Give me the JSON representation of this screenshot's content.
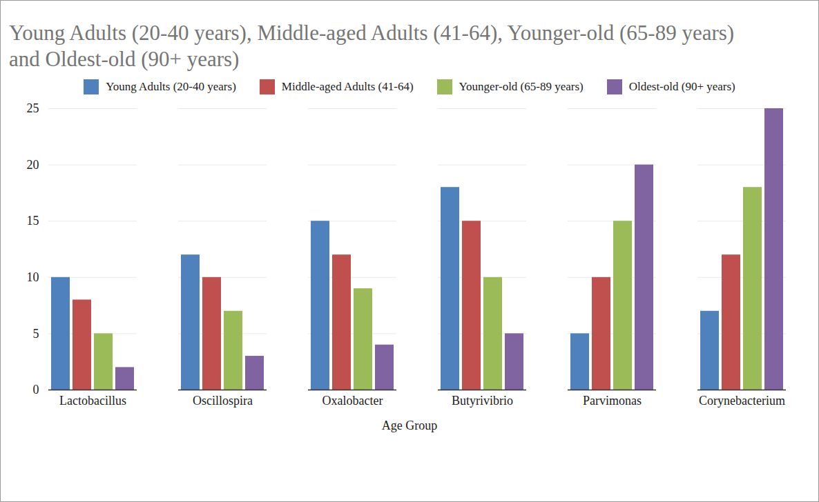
{
  "chart_data": {
    "type": "bar",
    "title": "Young Adults (20-40 years), Middle-aged Adults (41-64), Younger-old (65-89 years) and Oldest-old (90+ years)",
    "x_label": "Age Group",
    "categories": [
      "Lactobacillus",
      "Oscillospira",
      "Oxalobacter",
      "Butyrivibrio",
      "Parvimonas",
      "Corynebacterium"
    ],
    "series": [
      {
        "name": "Young Adults (20-40 years)",
        "color": "#4f81bd",
        "values": [
          10,
          12,
          15,
          18,
          5,
          7
        ]
      },
      {
        "name": "Middle-aged Adults (41-64)",
        "color": "#c0504d",
        "values": [
          8,
          10,
          12,
          15,
          10,
          12
        ]
      },
      {
        "name": "Younger-old (65-89 years)",
        "color": "#9bbb59",
        "values": [
          5,
          7,
          9,
          10,
          15,
          18
        ]
      },
      {
        "name": "Oldest-old (90+ years)",
        "color": "#8064a2",
        "values": [
          2,
          3,
          4,
          5,
          20,
          25
        ]
      }
    ],
    "ylim": [
      0,
      25
    ],
    "yticks": [
      0,
      5,
      10,
      15,
      20,
      25
    ],
    "grid": true,
    "legend": "top"
  }
}
